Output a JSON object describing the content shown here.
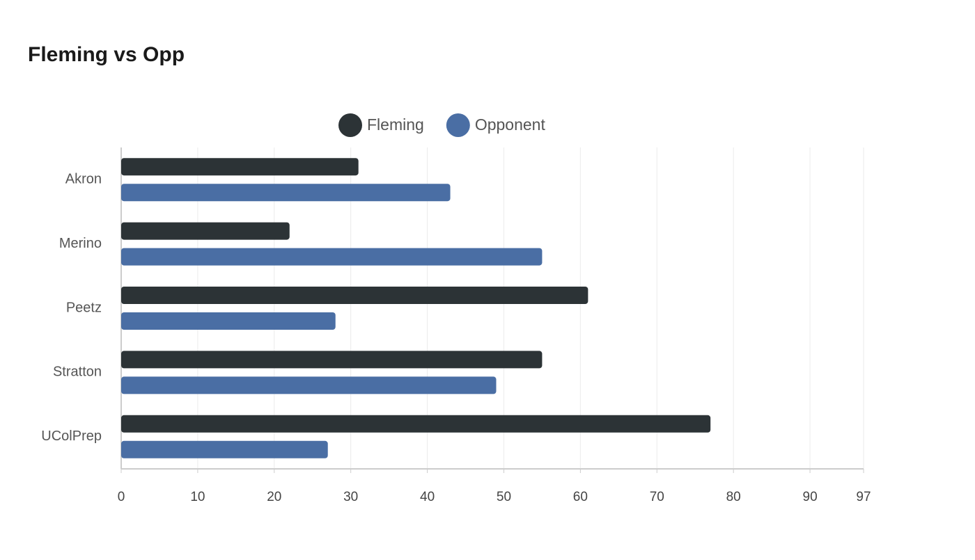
{
  "chart_data": {
    "type": "bar",
    "orientation": "horizontal",
    "title": "Fleming vs Opp",
    "categories": [
      "Akron",
      "Merino",
      "Peetz",
      "Stratton",
      "UColPrep"
    ],
    "series": [
      {
        "name": "Fleming",
        "color": "#2c3336",
        "values": [
          31,
          22,
          61,
          55,
          77
        ]
      },
      {
        "name": "Opponent",
        "color": "#4a6ea4",
        "values": [
          43,
          55,
          28,
          49,
          27
        ]
      }
    ],
    "xlim": [
      0,
      97
    ],
    "xticks": [
      0,
      10,
      20,
      30,
      40,
      50,
      60,
      70,
      80,
      90,
      97
    ],
    "grid": true,
    "legend": "top"
  }
}
